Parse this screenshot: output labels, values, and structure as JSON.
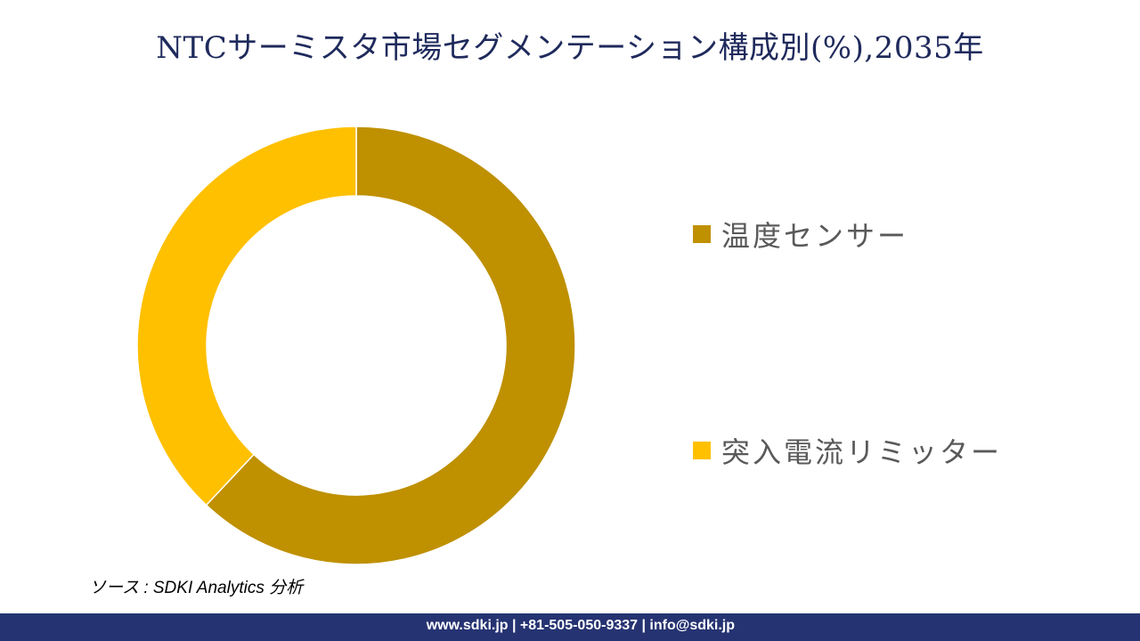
{
  "title": "NTCサーミスタ市場セグメンテーション構成別(%),2035年",
  "legend": [
    {
      "label": "温度センサー",
      "color": "#bf9000"
    },
    {
      "label": "突入電流リミッター",
      "color": "#ffc000"
    }
  ],
  "source": "ソース : SDKI Analytics 分析",
  "footer": {
    "text": "www.sdki.jp | +81-505-050-9337 | info@sdki.jp"
  },
  "chart_data": {
    "type": "pie",
    "subtype": "donut",
    "title": "NTCサーミスタ市場セグメンテーション構成別(%),2035年",
    "categories": [
      "温度センサー",
      "突入電流リミッター"
    ],
    "values": [
      62,
      38
    ],
    "colors": [
      "#bf9000",
      "#ffc000"
    ],
    "legend_position": "right",
    "data_labels": false
  }
}
